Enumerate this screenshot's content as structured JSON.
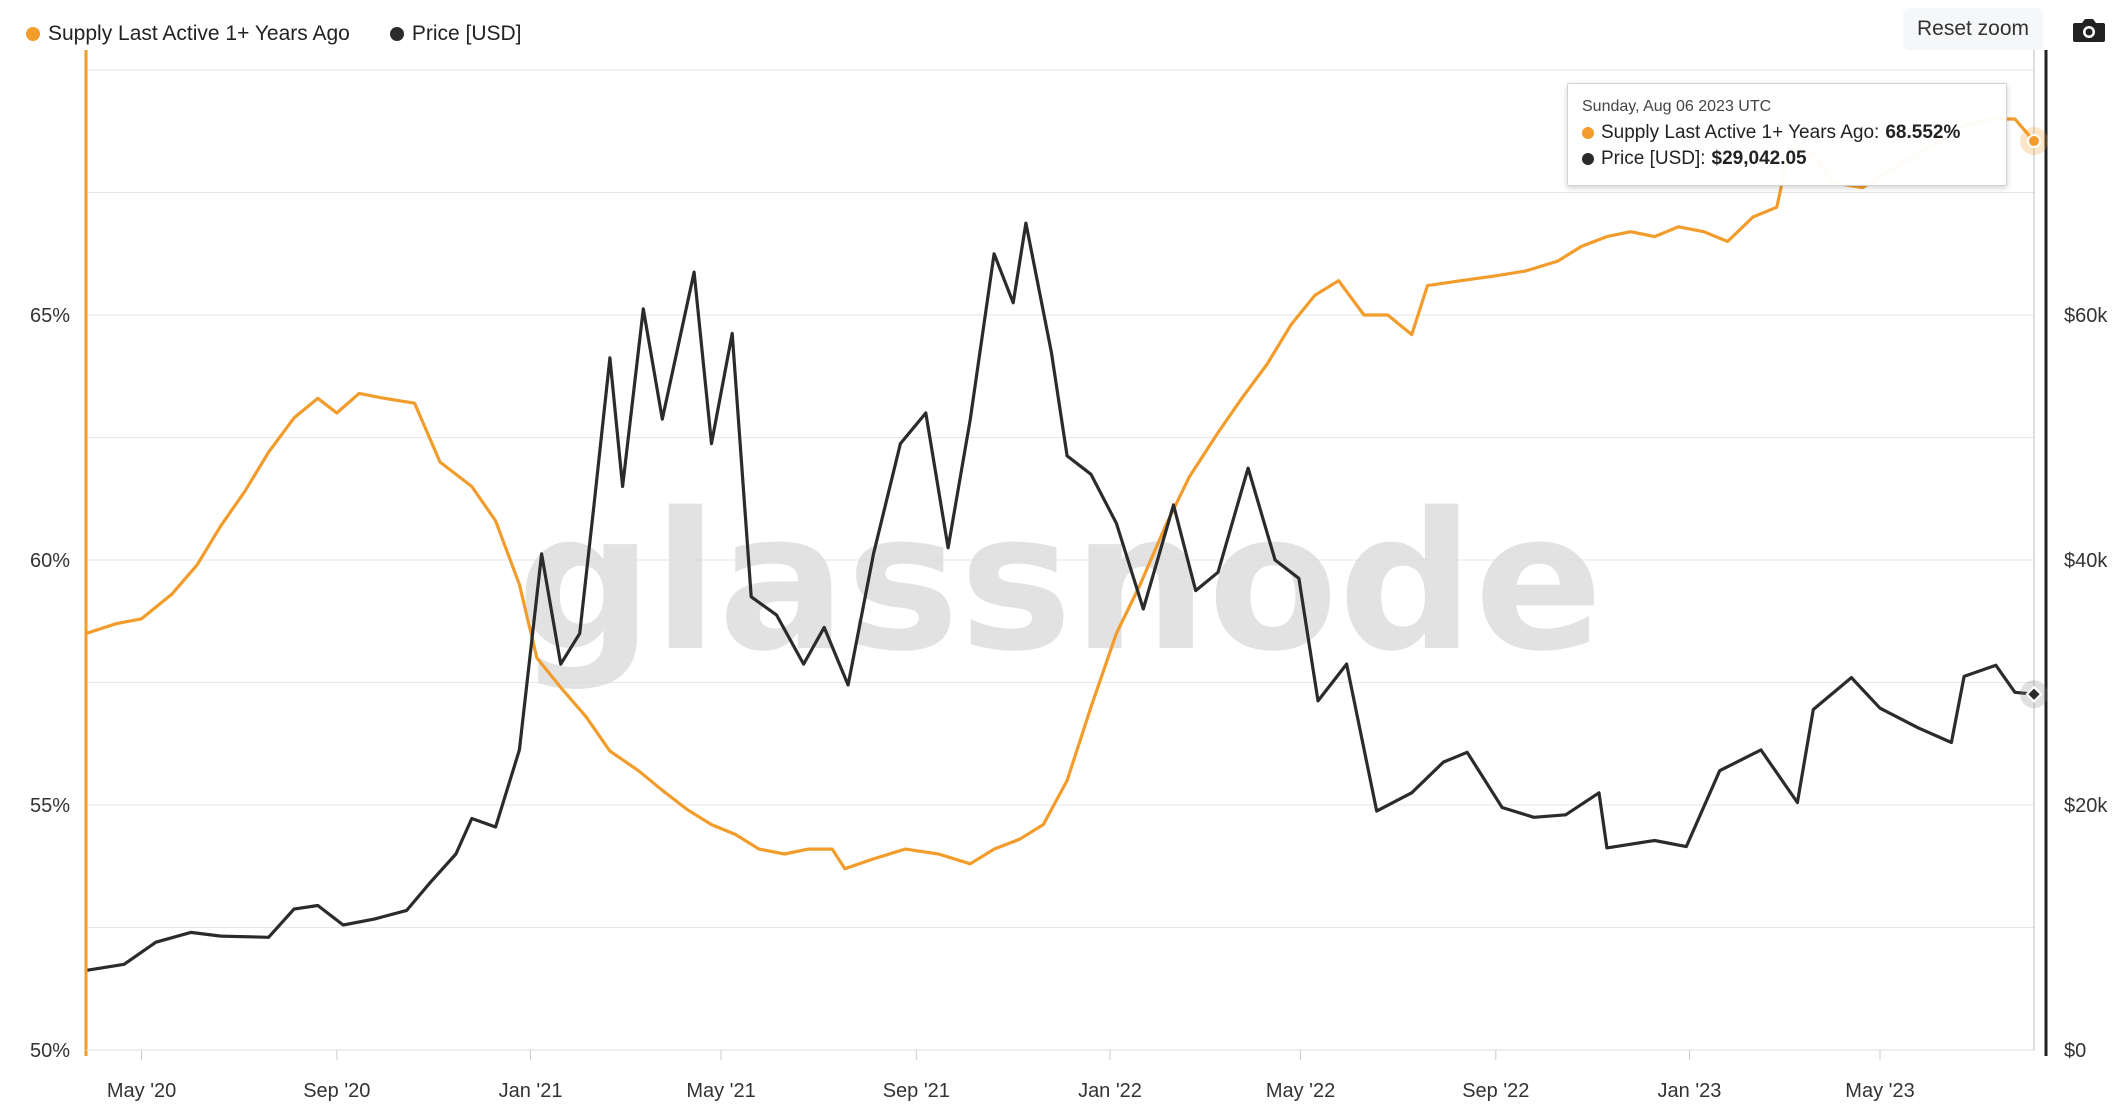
{
  "legend": [
    {
      "name": "Supply Last Active 1+ Years Ago",
      "color": "#f29c2b"
    },
    {
      "name": "Price [USD]",
      "color": "#2b2b2b"
    }
  ],
  "toolbar": {
    "reset_zoom_label": "Reset zoom",
    "camera_icon": "camera-icon"
  },
  "watermark": "glassnode",
  "tooltip": {
    "date": "Sunday, Aug 06 2023 UTC",
    "rows": [
      {
        "label": "Supply Last Active 1+ Years Ago:",
        "value": "68.552%",
        "color": "#f29c2b"
      },
      {
        "label": "Price [USD]:",
        "value": "$29,042.05",
        "color": "#2b2b2b"
      }
    ]
  },
  "chart_data": {
    "type": "line",
    "title": "",
    "x_tick_labels": [
      "May '20",
      "Sep '20",
      "Jan '21",
      "May '21",
      "Sep '21",
      "Jan '22",
      "May '22",
      "Sep '22",
      "Jan '23",
      "May '23"
    ],
    "x_tick_dates": [
      "2020-05-01",
      "2020-09-01",
      "2021-01-01",
      "2021-05-01",
      "2021-09-01",
      "2022-01-01",
      "2022-05-01",
      "2022-09-01",
      "2023-01-01",
      "2023-05-01"
    ],
    "x_range": [
      "2020-03-27",
      "2023-08-06"
    ],
    "y_left": {
      "ticks": [
        50,
        55,
        60,
        65
      ],
      "tick_labels": [
        "50%",
        "55%",
        "60%",
        "65%"
      ],
      "range": [
        50,
        70
      ]
    },
    "y_right": {
      "ticks": [
        0,
        20000,
        40000,
        60000
      ],
      "tick_labels": [
        "$0",
        "$20k",
        "$40k",
        "$60k"
      ],
      "range": [
        0,
        80000
      ]
    },
    "grid": true,
    "legend_position": "top-left",
    "series": [
      {
        "name": "Supply Last Active 1+ Years Ago",
        "axis": "left",
        "color": "#f29c2b",
        "points": [
          [
            "2020-03-27",
            58.5
          ],
          [
            "2020-04-15",
            58.7
          ],
          [
            "2020-05-01",
            58.8
          ],
          [
            "2020-05-20",
            59.3
          ],
          [
            "2020-06-05",
            59.9
          ],
          [
            "2020-06-20",
            60.7
          ],
          [
            "2020-07-05",
            61.4
          ],
          [
            "2020-07-20",
            62.2
          ],
          [
            "2020-08-05",
            62.9
          ],
          [
            "2020-08-20",
            63.3
          ],
          [
            "2020-09-01",
            63.0
          ],
          [
            "2020-09-15",
            63.4
          ],
          [
            "2020-10-01",
            63.3
          ],
          [
            "2020-10-20",
            63.2
          ],
          [
            "2020-11-05",
            62.0
          ],
          [
            "2020-11-25",
            61.5
          ],
          [
            "2020-12-10",
            60.8
          ],
          [
            "2020-12-25",
            59.5
          ],
          [
            "2021-01-05",
            58.0
          ],
          [
            "2021-01-20",
            57.4
          ],
          [
            "2021-02-05",
            56.8
          ],
          [
            "2021-02-20",
            56.1
          ],
          [
            "2021-03-10",
            55.7
          ],
          [
            "2021-03-25",
            55.3
          ],
          [
            "2021-04-10",
            54.9
          ],
          [
            "2021-04-25",
            54.6
          ],
          [
            "2021-05-10",
            54.4
          ],
          [
            "2021-05-25",
            54.1
          ],
          [
            "2021-06-10",
            54.0
          ],
          [
            "2021-06-25",
            54.1
          ],
          [
            "2021-07-10",
            54.1
          ],
          [
            "2021-07-18",
            53.7
          ],
          [
            "2021-08-05",
            53.9
          ],
          [
            "2021-08-25",
            54.1
          ],
          [
            "2021-09-15",
            54.0
          ],
          [
            "2021-10-05",
            53.8
          ],
          [
            "2021-10-20",
            54.1
          ],
          [
            "2021-11-05",
            54.3
          ],
          [
            "2021-11-20",
            54.6
          ],
          [
            "2021-12-05",
            55.5
          ],
          [
            "2021-12-20",
            57.0
          ],
          [
            "2022-01-05",
            58.5
          ],
          [
            "2022-01-20",
            59.5
          ],
          [
            "2022-02-05",
            60.7
          ],
          [
            "2022-02-20",
            61.7
          ],
          [
            "2022-03-10",
            62.6
          ],
          [
            "2022-03-25",
            63.3
          ],
          [
            "2022-04-10",
            64.0
          ],
          [
            "2022-04-25",
            64.8
          ],
          [
            "2022-05-10",
            65.4
          ],
          [
            "2022-05-25",
            65.7
          ],
          [
            "2022-06-10",
            65.0
          ],
          [
            "2022-06-25",
            65.0
          ],
          [
            "2022-07-10",
            64.6
          ],
          [
            "2022-07-20",
            65.6
          ],
          [
            "2022-08-10",
            65.7
          ],
          [
            "2022-09-01",
            65.8
          ],
          [
            "2022-09-20",
            65.9
          ],
          [
            "2022-10-10",
            66.1
          ],
          [
            "2022-10-25",
            66.4
          ],
          [
            "2022-11-10",
            66.6
          ],
          [
            "2022-11-25",
            66.7
          ],
          [
            "2022-12-10",
            66.6
          ],
          [
            "2022-12-25",
            66.8
          ],
          [
            "2023-01-10",
            66.7
          ],
          [
            "2023-01-25",
            66.5
          ],
          [
            "2023-02-10",
            67.0
          ],
          [
            "2023-02-25",
            67.2
          ],
          [
            "2023-03-05",
            68.4
          ],
          [
            "2023-03-20",
            68.3
          ],
          [
            "2023-04-01",
            67.7
          ],
          [
            "2023-04-20",
            67.6
          ],
          [
            "2023-05-05",
            67.9
          ],
          [
            "2023-05-20",
            68.2
          ],
          [
            "2023-06-10",
            68.6
          ],
          [
            "2023-06-25",
            68.9
          ],
          [
            "2023-07-10",
            69.0
          ],
          [
            "2023-07-25",
            69.0
          ],
          [
            "2023-08-06",
            68.55
          ]
        ]
      },
      {
        "name": "Price [USD]",
        "axis": "right",
        "color": "#2b2b2b",
        "points": [
          [
            "2020-03-27",
            6500
          ],
          [
            "2020-04-20",
            7000
          ],
          [
            "2020-05-10",
            8800
          ],
          [
            "2020-06-01",
            9600
          ],
          [
            "2020-06-20",
            9300
          ],
          [
            "2020-07-20",
            9200
          ],
          [
            "2020-08-05",
            11500
          ],
          [
            "2020-08-20",
            11800
          ],
          [
            "2020-09-05",
            10200
          ],
          [
            "2020-09-25",
            10700
          ],
          [
            "2020-10-15",
            11400
          ],
          [
            "2020-10-30",
            13700
          ],
          [
            "2020-11-15",
            16000
          ],
          [
            "2020-11-25",
            18900
          ],
          [
            "2020-12-10",
            18200
          ],
          [
            "2020-12-25",
            24500
          ],
          [
            "2021-01-08",
            40500
          ],
          [
            "2021-01-20",
            31500
          ],
          [
            "2021-02-01",
            34000
          ],
          [
            "2021-02-10",
            44500
          ],
          [
            "2021-02-20",
            56500
          ],
          [
            "2021-02-28",
            46000
          ],
          [
            "2021-03-13",
            60500
          ],
          [
            "2021-03-25",
            51500
          ],
          [
            "2021-04-14",
            63500
          ],
          [
            "2021-04-25",
            49500
          ],
          [
            "2021-05-08",
            58500
          ],
          [
            "2021-05-20",
            37000
          ],
          [
            "2021-06-05",
            35500
          ],
          [
            "2021-06-22",
            31500
          ],
          [
            "2021-07-05",
            34500
          ],
          [
            "2021-07-20",
            29800
          ],
          [
            "2021-08-05",
            40500
          ],
          [
            "2021-08-22",
            49500
          ],
          [
            "2021-09-07",
            52000
          ],
          [
            "2021-09-21",
            41000
          ],
          [
            "2021-10-05",
            51500
          ],
          [
            "2021-10-20",
            65000
          ],
          [
            "2021-11-01",
            61000
          ],
          [
            "2021-11-09",
            67500
          ],
          [
            "2021-11-25",
            57000
          ],
          [
            "2021-12-05",
            48500
          ],
          [
            "2021-12-20",
            47000
          ],
          [
            "2022-01-05",
            43000
          ],
          [
            "2022-01-22",
            36000
          ],
          [
            "2022-02-10",
            44500
          ],
          [
            "2022-02-24",
            37500
          ],
          [
            "2022-03-10",
            39000
          ],
          [
            "2022-03-29",
            47500
          ],
          [
            "2022-04-15",
            40000
          ],
          [
            "2022-04-30",
            38500
          ],
          [
            "2022-05-12",
            28500
          ],
          [
            "2022-05-30",
            31500
          ],
          [
            "2022-06-18",
            19500
          ],
          [
            "2022-07-10",
            21000
          ],
          [
            "2022-07-30",
            23500
          ],
          [
            "2022-08-14",
            24300
          ],
          [
            "2022-09-05",
            19800
          ],
          [
            "2022-09-25",
            19000
          ],
          [
            "2022-10-15",
            19200
          ],
          [
            "2022-11-05",
            21000
          ],
          [
            "2022-11-10",
            16500
          ],
          [
            "2022-12-10",
            17100
          ],
          [
            "2022-12-30",
            16600
          ],
          [
            "2023-01-20",
            22800
          ],
          [
            "2023-02-15",
            24500
          ],
          [
            "2023-03-10",
            20200
          ],
          [
            "2023-03-20",
            27800
          ],
          [
            "2023-04-13",
            30400
          ],
          [
            "2023-05-01",
            27900
          ],
          [
            "2023-05-25",
            26300
          ],
          [
            "2023-06-15",
            25100
          ],
          [
            "2023-06-23",
            30500
          ],
          [
            "2023-07-13",
            31400
          ],
          [
            "2023-07-25",
            29200
          ],
          [
            "2023-08-06",
            29042
          ]
        ]
      }
    ]
  }
}
